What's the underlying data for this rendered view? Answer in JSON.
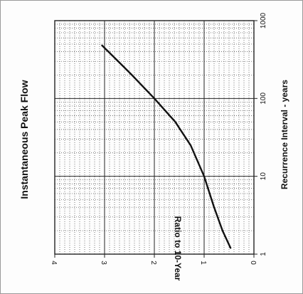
{
  "chart_data": {
    "type": "line",
    "title": "Instantaneous Peak Flow",
    "xlabel": "Ratio to 10-Year",
    "ylabel": "Recurrence Interval - years",
    "orientation": "rotated",
    "x_scale": "linear",
    "y_scale": "log",
    "xlim": [
      0,
      4
    ],
    "ylim": [
      1,
      1000
    ],
    "x_ticks": [
      "0",
      "1",
      "2",
      "3",
      "4"
    ],
    "y_ticks": [
      "1",
      "10",
      "100",
      "1000"
    ],
    "grid": true,
    "series": [
      {
        "x": [
          0.47,
          0.63,
          0.8,
          1.0,
          1.27,
          1.58,
          2.0,
          2.45,
          2.77,
          3.05
        ],
        "y": [
          1.2,
          2.0,
          4.0,
          10,
          25,
          50,
          100,
          200,
          320,
          480
        ]
      }
    ]
  }
}
